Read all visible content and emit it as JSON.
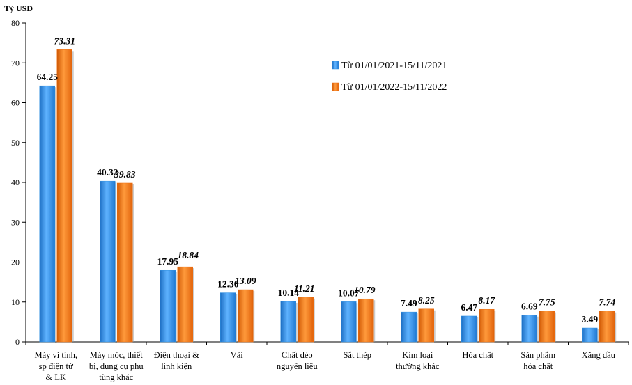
{
  "chart_data": {
    "type": "bar",
    "ylabel": "Tỷ USD",
    "ylim": [
      0,
      80
    ],
    "yticks": [
      0,
      10,
      20,
      30,
      40,
      50,
      60,
      70,
      80
    ],
    "grid": false,
    "legend_position": "top-right",
    "categories": [
      [
        "Máy vi tính,",
        "sp điện tử",
        "& LK"
      ],
      [
        "Máy móc, thiết",
        "bị, dụng cụ phụ",
        "tùng khác"
      ],
      [
        "Điện thoại &",
        "linh kiện"
      ],
      [
        "Vải"
      ],
      [
        "Chất dẻo",
        "nguyên liệu"
      ],
      [
        "Sắt thép"
      ],
      [
        "Kim loại",
        "thường khác"
      ],
      [
        "Hóa chất"
      ],
      [
        "Sản phẩm",
        "hóa chất"
      ],
      [
        "Xăng dầu"
      ]
    ],
    "series": [
      {
        "name": "Từ 01/01/2021-15/11/2021",
        "color": "#2f8fe0",
        "values": [
          64.25,
          40.32,
          17.95,
          12.3,
          10.14,
          10.07,
          7.49,
          6.47,
          6.69,
          3.49
        ],
        "labels": [
          "64.25",
          "40.32",
          "17.95",
          "12.30",
          "10.14",
          "10.07",
          "7.49",
          "6.47",
          "6.69",
          "3.49"
        ]
      },
      {
        "name": "Từ 01/01/2022-15/11/2022",
        "color": "#f07012",
        "values": [
          73.31,
          39.83,
          18.84,
          13.09,
          11.21,
          10.79,
          8.25,
          8.17,
          7.75,
          7.74
        ],
        "labels": [
          "73.31",
          "39.83",
          "18.84",
          "13.09",
          "11.21",
          "10.79",
          "8.25",
          "8.17",
          "7.75",
          "7.74"
        ]
      }
    ]
  }
}
